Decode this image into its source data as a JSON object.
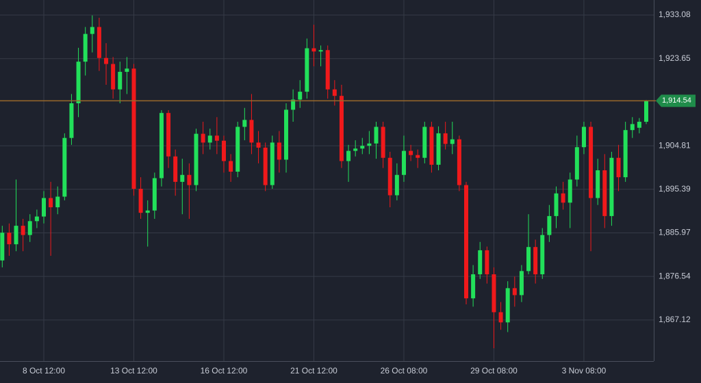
{
  "chart_data": {
    "type": "candlestick",
    "categories": [
      null,
      null,
      null,
      null,
      null,
      null,
      "8 Oct 12:00",
      null,
      null,
      null,
      null,
      null,
      null,
      null,
      null,
      null,
      null,
      null,
      null,
      "13 Oct 12:00",
      null,
      null,
      null,
      null,
      null,
      null,
      null,
      null,
      null,
      null,
      null,
      null,
      "16 Oct 12:00",
      null,
      null,
      null,
      null,
      null,
      null,
      null,
      null,
      null,
      null,
      null,
      null,
      "21 Oct 12:00",
      null,
      null,
      null,
      null,
      null,
      null,
      null,
      null,
      null,
      null,
      null,
      null,
      "26 Oct 08:00",
      null,
      null,
      null,
      null,
      null,
      null,
      null,
      null,
      null,
      null,
      null,
      null,
      "29 Oct 08:00",
      null,
      null,
      null,
      null,
      null,
      null,
      null,
      null,
      null,
      null,
      null,
      null,
      "3 Nov 08:00",
      null,
      null,
      null,
      null,
      null,
      null,
      null,
      null,
      null
    ],
    "open": [
      1880.0,
      1886.0,
      1883.5,
      1887.5,
      1885.5,
      1888.5,
      1889.5,
      1893.5,
      1891.5,
      1893.8,
      1906.5,
      1914.0,
      1923.0,
      1929.0,
      1930.5,
      1923.8,
      1922.5,
      1917.0,
      1920.8,
      1921.5,
      1895.5,
      1890.3,
      1890.8,
      1897.8,
      1911.9,
      1902.5,
      1897.0,
      1898.5,
      1896.3,
      1907.4,
      1905.5,
      1907.0,
      1905.9,
      1901.5,
      1899.2,
      1908.9,
      1910.4,
      1905.5,
      1904.4,
      1896.3,
      1905.5,
      1901.8,
      1912.6,
      1914.8,
      1916.5,
      1925.9,
      1925.2,
      1925.5,
      1917.0,
      1915.6,
      1901.5,
      1903.7,
      1904.2,
      1904.8,
      1905.3,
      1908.9,
      1902.2,
      1894.1,
      1898.5,
      1903.7,
      1902.8,
      1902.2,
      1908.9,
      1900.7,
      1907.5,
      1905.2,
      1906.2,
      1896.3,
      1871.8,
      1877.0,
      1882.2,
      1877.0,
      1868.8,
      1866.6,
      1874.0,
      1872.5,
      1877.7,
      1882.9,
      1877.0,
      1885.5,
      1889.6,
      1894.5,
      1892.5,
      1897.5,
      1904.5,
      1908.9,
      1893.5,
      1899.5,
      1889.6,
      1902.2,
      1898.0,
      1908.2,
      1908.7,
      1910.0
    ],
    "high": [
      1887.5,
      1888,
      1897.5,
      1889,
      1890,
      1891,
      1895,
      1897,
      1896,
      1907.5,
      1916,
      1926,
      1930.5,
      1933,
      1932.5,
      1927,
      1924,
      1923,
      1924,
      1922.5,
      1898,
      1893,
      1899,
      1912.5,
      1912.5,
      1904,
      1902,
      1901,
      1908.5,
      1910,
      1908.5,
      1911,
      1907,
      1903,
      1910,
      1913,
      1916,
      1908,
      1905.5,
      1907,
      1908,
      1914,
      1917,
      1919,
      1928,
      1931,
      1926.5,
      1926.5,
      1919,
      1918,
      1905,
      1906,
      1906.5,
      1908,
      1910,
      1910,
      1903.5,
      1901,
      1907,
      1905,
      1904,
      1910,
      1910,
      1909,
      1910,
      1910,
      1907,
      1897,
      1879,
      1884,
      1883,
      1878.5,
      1871,
      1875.5,
      1876.5,
      1879,
      1890,
      1884.5,
      1887,
      1892,
      1896,
      1897,
      1899,
      1907,
      1910,
      1910,
      1902,
      1903,
      1903.5,
      1905,
      1910,
      1911,
      1910.8,
      1914.7
    ],
    "low": [
      1878.5,
      1881,
      1882,
      1882,
      1884,
      1887,
      1888,
      1881,
      1890,
      1893,
      1905,
      1911,
      1920,
      1925,
      1921,
      1918,
      1915,
      1914,
      1916,
      1894,
      1889,
      1883,
      1889,
      1896,
      1900,
      1894,
      1890,
      1889,
      1895,
      1903,
      1904,
      1903,
      1899,
      1897,
      1898,
      1906,
      1903,
      1901,
      1895,
      1895.5,
      1899,
      1899,
      1910,
      1913,
      1915,
      1922,
      1922,
      1915,
      1913.5,
      1900,
      1897,
      1902.5,
      1903,
      1903,
      1902,
      1900,
      1891.5,
      1893,
      1897,
      1901.5,
      1900,
      1901,
      1899,
      1899.5,
      1904,
      1903,
      1895,
      1870.5,
      1870,
      1876,
      1875,
      1861,
      1865,
      1864.5,
      1870,
      1871,
      1877,
      1875,
      1876,
      1884,
      1887,
      1891,
      1887,
      1896,
      1903,
      1882,
      1892,
      1887,
      1887.5,
      1895,
      1897,
      1906.5,
      1907.5,
      1909.5
    ],
    "close": [
      1886.0,
      1883.5,
      1887.5,
      1885.5,
      1888.5,
      1889.5,
      1893.5,
      1891.5,
      1893.8,
      1906.5,
      1914.0,
      1923.0,
      1929.0,
      1930.5,
      1923.8,
      1922.5,
      1917.0,
      1920.8,
      1921.5,
      1895.5,
      1890.3,
      1890.8,
      1897.8,
      1911.9,
      1902.5,
      1897.0,
      1898.5,
      1896.3,
      1907.4,
      1905.5,
      1907.0,
      1905.9,
      1901.5,
      1899.2,
      1908.9,
      1910.4,
      1905.5,
      1904.4,
      1896.3,
      1905.5,
      1901.8,
      1912.6,
      1914.8,
      1916.5,
      1925.9,
      1925.2,
      1925.5,
      1917.0,
      1915.6,
      1901.5,
      1903.7,
      1904.2,
      1904.8,
      1905.3,
      1908.9,
      1902.2,
      1894.1,
      1898.5,
      1903.7,
      1902.8,
      1902.2,
      1908.9,
      1900.7,
      1907.5,
      1905.2,
      1906.2,
      1896.3,
      1871.8,
      1877.0,
      1882.2,
      1877.0,
      1868.8,
      1866.6,
      1874.0,
      1872.5,
      1877.7,
      1882.9,
      1877.0,
      1885.5,
      1889.6,
      1894.5,
      1892.5,
      1897.5,
      1904.5,
      1908.9,
      1893.5,
      1899.5,
      1889.6,
      1902.2,
      1898.0,
      1908.2,
      1909.5,
      1910.0,
      1914.54
    ],
    "up_color": "#22e05a",
    "down_color": "#f0191b",
    "ylim": [
      1858.22,
      1936.34
    ],
    "yticks": [
      {
        "value": 1933.08,
        "label": "1,933.08"
      },
      {
        "value": 1923.65,
        "label": "1,923.65"
      },
      {
        "value": 1904.81,
        "label": "1,904.81"
      },
      {
        "value": 1895.39,
        "label": "1,895.39"
      },
      {
        "value": 1885.97,
        "label": "1,885.97"
      },
      {
        "value": 1876.54,
        "label": "1,876.54"
      },
      {
        "value": 1867.12,
        "label": "1,867.12"
      }
    ],
    "last_price": {
      "value": 1914.54,
      "label": "1,914.54"
    },
    "grid": true
  }
}
